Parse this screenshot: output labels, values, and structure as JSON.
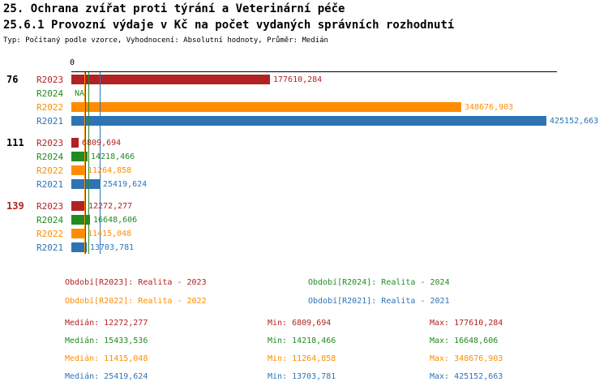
{
  "header": {
    "title_line1": "25. Ochrana zvířat proti týrání a Veterinární péče",
    "title_line2": "25.6.1 Provozní výdaje v Kč na počet vydaných správních rozhodnutí",
    "subtitle": "Typ: Počítaný podle vzorce, Vyhodnocení: Absolutní hodnoty, Průměr: Medián"
  },
  "colors": {
    "R2023": "#b22222",
    "R2024": "#228b22",
    "R2022": "#ff8c00",
    "R2021": "#2e74b5",
    "axis": "#000000",
    "group_label_default": "#000000",
    "group_label_highlight": "#b22222"
  },
  "chart_data": {
    "type": "bar",
    "orientation": "horizontal",
    "x_axis": {
      "zero_label": "0",
      "xlim": [
        0,
        430000
      ]
    },
    "row_order": [
      "R2023",
      "R2024",
      "R2022",
      "R2021"
    ],
    "groups": [
      {
        "label": "76",
        "highlight": false,
        "bars": [
          {
            "series": "R2023",
            "value": 177610.284,
            "label": "177610,284"
          },
          {
            "series": "R2024",
            "value": null,
            "label": "NA"
          },
          {
            "series": "R2022",
            "value": 348676.903,
            "label": "348676,903"
          },
          {
            "series": "R2021",
            "value": 425152.663,
            "label": "425152,663"
          }
        ]
      },
      {
        "label": "111",
        "highlight": false,
        "bars": [
          {
            "series": "R2023",
            "value": 6809.694,
            "label": "6809,694"
          },
          {
            "series": "R2024",
            "value": 14218.466,
            "label": "14218,466"
          },
          {
            "series": "R2022",
            "value": 11264.858,
            "label": "11264,858"
          },
          {
            "series": "R2021",
            "value": 25419.624,
            "label": "25419,624"
          }
        ]
      },
      {
        "label": "139",
        "highlight": true,
        "bars": [
          {
            "series": "R2023",
            "value": 12272.277,
            "label": "12272,277"
          },
          {
            "series": "R2024",
            "value": 16648.606,
            "label": "16648,606"
          },
          {
            "series": "R2022",
            "value": 11415.048,
            "label": "11415,048"
          },
          {
            "series": "R2021",
            "value": 13703.781,
            "label": "13703,781"
          }
        ]
      }
    ],
    "median_lines": [
      {
        "series": "R2023",
        "value": 12272.277
      },
      {
        "series": "R2024",
        "value": 15433.536
      },
      {
        "series": "R2022",
        "value": 11415.048
      },
      {
        "series": "R2021",
        "value": 25419.624
      }
    ]
  },
  "legend": [
    {
      "series": "R2023",
      "text": "Období[R2023]: Realita - 2023"
    },
    {
      "series": "R2024",
      "text": "Období[R2024]: Realita - 2024"
    },
    {
      "series": "R2022",
      "text": "Období[R2022]: Realita - 2022"
    },
    {
      "series": "R2021",
      "text": "Období[R2021]: Realita - 2021"
    }
  ],
  "stats": [
    {
      "series": "R2023",
      "median": "Medián: 12272,277",
      "min": "Min: 6809,694",
      "max": "Max: 177610,284"
    },
    {
      "series": "R2024",
      "median": "Medián: 15433,536",
      "min": "Min: 14218,466",
      "max": "Max: 16648,606"
    },
    {
      "series": "R2022",
      "median": "Medián: 11415,048",
      "min": "Min: 11264,858",
      "max": "Max: 348676,903"
    },
    {
      "series": "R2021",
      "median": "Medián: 25419,624",
      "min": "Min: 13703,781",
      "max": "Max: 425152,663"
    }
  ]
}
